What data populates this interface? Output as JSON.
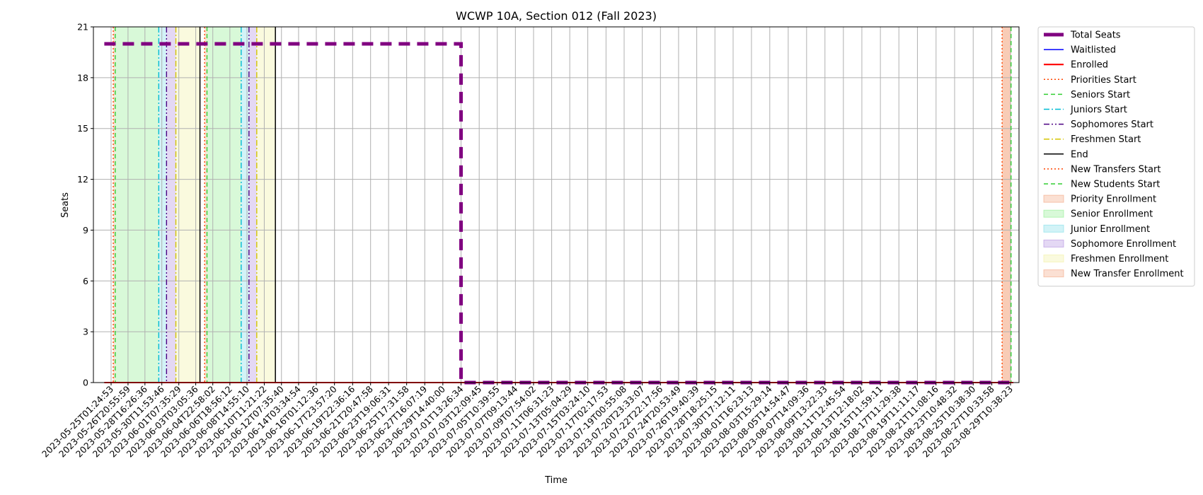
{
  "chart_data": {
    "type": "line",
    "title": "WCWP 10A, Section 012 (Fall 2023)",
    "xlabel": "Time",
    "ylabel": "Seats",
    "ylim": [
      0,
      21
    ],
    "yticks": [
      0,
      3,
      6,
      9,
      12,
      15,
      18,
      21
    ],
    "grid": true,
    "legend_position": "outside-right",
    "x_ticks": [
      "2023-05-25T01:24:53",
      "2023-05-26T20:55:59",
      "2023-05-28T16:26:36",
      "2023-05-30T11:53:46",
      "2023-06-01T07:35:29",
      "2023-06-03T03:05:36",
      "2023-06-04T22:58:02",
      "2023-06-06T18:56:12",
      "2023-06-08T14:55:10",
      "2023-06-10T11:21:22",
      "2023-06-12T07:35:40",
      "2023-06-14T03:34:54",
      "2023-06-16T01:12:36",
      "2023-06-17T23:57:20",
      "2023-06-19T22:36:16",
      "2023-06-21T20:47:58",
      "2023-06-23T19:06:31",
      "2023-06-25T17:31:58",
      "2023-06-27T16:07:19",
      "2023-06-29T14:40:00",
      "2023-07-01T13:26:34",
      "2023-07-03T12:09:45",
      "2023-07-05T10:39:55",
      "2023-07-07T09:13:44",
      "2023-07-09T07:54:02",
      "2023-07-11T06:31:23",
      "2023-07-13T05:04:29",
      "2023-07-15T03:24:10",
      "2023-07-17T02:17:53",
      "2023-07-19T00:55:08",
      "2023-07-20T23:33:07",
      "2023-07-22T22:17:56",
      "2023-07-24T20:53:49",
      "2023-07-26T19:40:39",
      "2023-07-28T18:25:15",
      "2023-07-30T17:12:11",
      "2023-08-01T16:23:13",
      "2023-08-03T15:29:14",
      "2023-08-05T14:54:47",
      "2023-08-07T14:09:36",
      "2023-08-09T13:22:33",
      "2023-08-11T12:45:54",
      "2023-08-13T12:18:02",
      "2023-08-15T11:59:11",
      "2023-08-17T11:29:38",
      "2023-08-19T11:11:17",
      "2023-08-21T11:08:16",
      "2023-08-23T10:48:32",
      "2023-08-25T10:38:30",
      "2023-08-27T10:33:58",
      "2023-08-29T10:38:23"
    ],
    "series": [
      {
        "name": "Total Seats",
        "color": "#800080",
        "style": "dashed-thick",
        "points": [
          [
            "2023-05-24T08:00:00",
            20
          ],
          [
            "2023-07-01T13:26:34",
            20
          ],
          [
            "2023-07-01T13:26:34",
            0
          ],
          [
            "2023-08-29T18:00:00",
            0
          ]
        ]
      },
      {
        "name": "Waitlisted",
        "color": "#0000ff",
        "style": "solid",
        "points": [
          [
            "2023-05-24T08:00:00",
            0
          ],
          [
            "2023-08-29T18:00:00",
            0
          ]
        ]
      },
      {
        "name": "Enrolled",
        "color": "#ff0000",
        "style": "solid",
        "points": [
          [
            "2023-05-24T08:00:00",
            0
          ],
          [
            "2023-08-29T18:00:00",
            0
          ]
        ]
      }
    ],
    "vertical_lines": [
      {
        "name": "Priorities Start",
        "color": "#ff4500",
        "style": "dotted",
        "x": [
          "2023-05-25T07:00:00",
          "2023-06-04T02:00:00"
        ]
      },
      {
        "name": "Seniors Start",
        "color": "#32cd32",
        "style": "dashed",
        "x": [
          "2023-05-25T12:00:00",
          "2023-06-04T08:00:00"
        ]
      },
      {
        "name": "Juniors Start",
        "color": "#00bcd4",
        "style": "dashdot",
        "x": [
          "2023-05-30T04:00:00",
          "2023-06-08T00:00:00"
        ]
      },
      {
        "name": "Sophomores Start",
        "color": "#4b0082",
        "style": "dashdotdot",
        "x": [
          "2023-05-31T00:00:00",
          "2023-06-08T20:00:00"
        ]
      },
      {
        "name": "Freshmen Start",
        "color": "#d4c400",
        "style": "dashdot",
        "x": [
          "2023-06-01T00:00:00",
          "2023-06-09T16:00:00"
        ]
      },
      {
        "name": "End",
        "color": "#000000",
        "style": "solid",
        "x": [
          "2023-06-03T14:00:00",
          "2023-06-11T16:00:00"
        ]
      },
      {
        "name": "New Transfers Start",
        "color": "#ff4500",
        "style": "dotted",
        "x": [
          "2023-08-28T13:00:00"
        ]
      },
      {
        "name": "New Students Start",
        "color": "#32cd32",
        "style": "dashed",
        "x": [
          "2023-08-29T12:00:00"
        ]
      }
    ],
    "shaded_periods": [
      {
        "name": "Priority Enrollment",
        "color": "#f4a582",
        "periods": [
          [
            "2023-05-25T07:00:00",
            "2023-05-25T12:00:00"
          ],
          [
            "2023-06-04T02:00:00",
            "2023-06-04T08:00:00"
          ],
          [
            "2023-08-28T13:00:00",
            "2023-08-29T12:00:00"
          ]
        ]
      },
      {
        "name": "Senior Enrollment",
        "color": "#90ee90",
        "periods": [
          [
            "2023-05-25T12:00:00",
            "2023-05-30T04:00:00"
          ],
          [
            "2023-06-04T08:00:00",
            "2023-06-08T00:00:00"
          ]
        ]
      },
      {
        "name": "Junior Enrollment",
        "color": "#7fdde8",
        "periods": [
          [
            "2023-05-30T04:00:00",
            "2023-05-31T00:00:00"
          ],
          [
            "2023-06-08T00:00:00",
            "2023-06-08T20:00:00"
          ]
        ]
      },
      {
        "name": "Sophomore Enrollment",
        "color": "#b38ee0",
        "periods": [
          [
            "2023-05-31T00:00:00",
            "2023-06-01T00:00:00"
          ],
          [
            "2023-06-08T20:00:00",
            "2023-06-09T16:00:00"
          ]
        ]
      },
      {
        "name": "Freshmen Enrollment",
        "color": "#f2f0a0",
        "periods": [
          [
            "2023-06-01T00:00:00",
            "2023-06-03T14:00:00"
          ],
          [
            "2023-06-09T16:00:00",
            "2023-06-11T16:00:00"
          ]
        ]
      },
      {
        "name": "New Transfer Enrollment",
        "color": "#f4a582",
        "periods": [
          [
            "2023-08-28T13:00:00",
            "2023-08-29T12:00:00"
          ]
        ]
      }
    ],
    "legend": [
      {
        "label": "Total Seats",
        "kind": "line",
        "color": "#800080",
        "style": "thick"
      },
      {
        "label": "Waitlisted",
        "kind": "line",
        "color": "#0000ff",
        "style": "solid"
      },
      {
        "label": "Enrolled",
        "kind": "line",
        "color": "#ff0000",
        "style": "solid-bold"
      },
      {
        "label": "Priorities Start",
        "kind": "line",
        "color": "#ff4500",
        "style": "dotted"
      },
      {
        "label": "Seniors Start",
        "kind": "line",
        "color": "#32cd32",
        "style": "dashed"
      },
      {
        "label": "Juniors Start",
        "kind": "line",
        "color": "#00bcd4",
        "style": "dashdot"
      },
      {
        "label": "Sophomores Start",
        "kind": "line",
        "color": "#4b0082",
        "style": "dashdotdot"
      },
      {
        "label": "Freshmen Start",
        "kind": "line",
        "color": "#d4c400",
        "style": "dashdot"
      },
      {
        "label": "End",
        "kind": "line",
        "color": "#000000",
        "style": "solid"
      },
      {
        "label": "New Transfers Start",
        "kind": "line",
        "color": "#ff4500",
        "style": "dotted"
      },
      {
        "label": "New Students Start",
        "kind": "line",
        "color": "#32cd32",
        "style": "dashed"
      },
      {
        "label": "Priority Enrollment",
        "kind": "patch",
        "color": "#f4a582"
      },
      {
        "label": "Senior Enrollment",
        "kind": "patch",
        "color": "#90ee90"
      },
      {
        "label": "Junior Enrollment",
        "kind": "patch",
        "color": "#7fdde8"
      },
      {
        "label": "Sophomore Enrollment",
        "kind": "patch",
        "color": "#b38ee0"
      },
      {
        "label": "Freshmen Enrollment",
        "kind": "patch",
        "color": "#f2f0a0"
      },
      {
        "label": "New Transfer Enrollment",
        "kind": "patch",
        "color": "#f4a582"
      }
    ]
  }
}
